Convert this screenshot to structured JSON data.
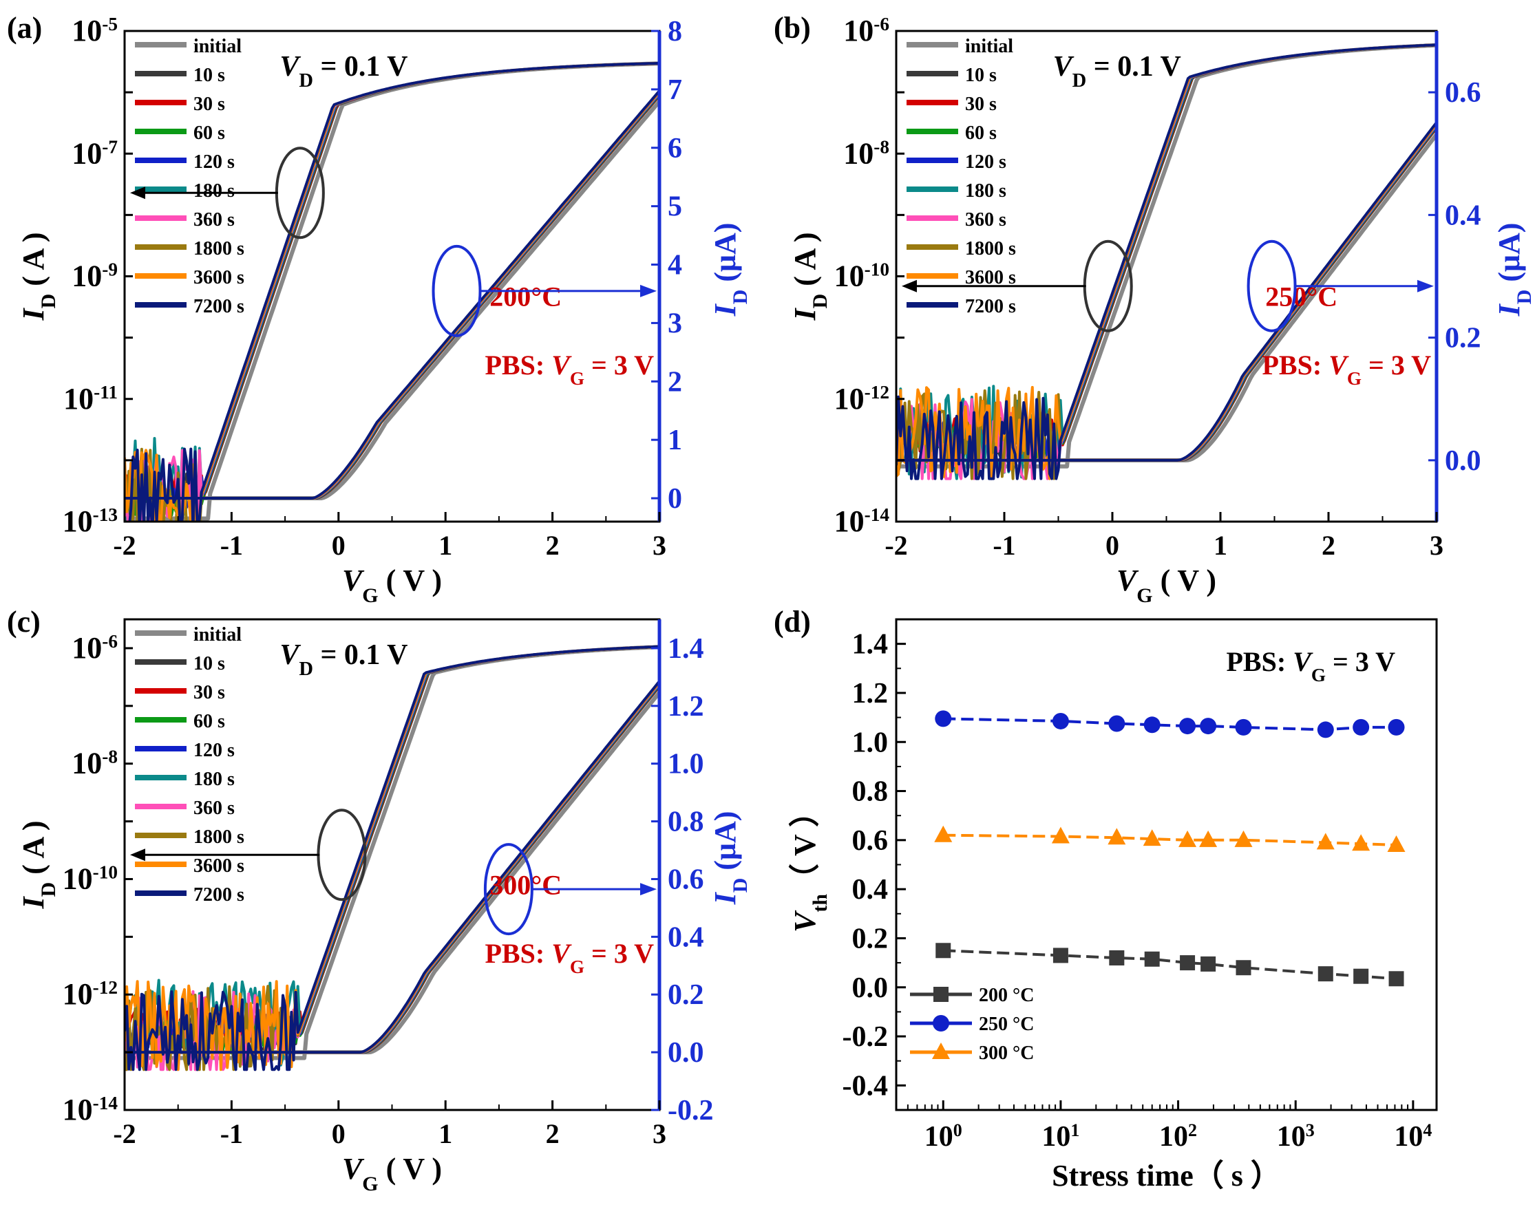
{
  "figure": {
    "colors": {
      "axis": "#000000",
      "right_axis": "#1a2fd4",
      "red_text": "#cc0000",
      "circle_left": "#333333",
      "circle_right": "#1a2fd4"
    }
  },
  "series_styles": [
    {
      "name": "initial",
      "color": "#888888"
    },
    {
      "name": "10 s",
      "color": "#3a3a3a"
    },
    {
      "name": "30 s",
      "color": "#d40000"
    },
    {
      "name": "60 s",
      "color": "#0b9a16"
    },
    {
      "name": "120 s",
      "color": "#1020c8"
    },
    {
      "name": "180 s",
      "color": "#0b8a8a"
    },
    {
      "name": "360 s",
      "color": "#ff4fb8"
    },
    {
      "name": "1800 s",
      "color": "#9a7a10"
    },
    {
      "name": "3600 s",
      "color": "#ff8a00"
    },
    {
      "name": "7200 s",
      "color": "#0a1a7a"
    }
  ],
  "chart_data": [
    {
      "id": "a",
      "label": "(a)",
      "type": "line",
      "title": "",
      "xlabel": "V",
      "xlabel_sub": "G",
      "xlabel_unit": " ( V )",
      "ylabel": "I",
      "ylabel_sub": "D",
      "ylabel_unit": " ( A )",
      "y2label": "I",
      "y2label_sub": "D",
      "y2label_unit": " (μA)",
      "xlim": [
        -2,
        3
      ],
      "xticks": [
        "-2",
        "-1",
        "0",
        "1",
        "2",
        "3"
      ],
      "ylim_log": [
        -13,
        -5
      ],
      "yticks": [
        {
          "base": "10",
          "exp": "-5"
        },
        {
          "base": "10",
          "exp": "-7"
        },
        {
          "base": "10",
          "exp": "-9"
        },
        {
          "base": "10",
          "exp": "-11"
        },
        {
          "base": "10",
          "exp": "-13"
        }
      ],
      "y2lim": [
        -0.4,
        8
      ],
      "y2ticks": [
        "0",
        "1",
        "2",
        "3",
        "4",
        "5",
        "6",
        "7",
        "8"
      ],
      "annotation_vd": {
        "pre": "V",
        "sub": "D",
        "post": " = 0.1 V"
      },
      "annotation_temp": "200°C",
      "annotation_pbs": {
        "pre": "PBS: ",
        "v": "V",
        "sub": "G",
        "post": " = 3 V"
      },
      "transfer_model": {
        "vth": -0.65,
        "ss": 0.195,
        "ioff_exp": -12.85,
        "ion_exp": -5.48,
        "floor_noise_until": -1.3
      },
      "linear_model": {
        "von": -0.2,
        "slope": 2.15,
        "exp": 1.45,
        "max": 7.0
      },
      "legend": [
        "initial",
        "10 s",
        "30 s",
        "60 s",
        "120 s",
        "180 s",
        "360 s",
        "1800 s",
        "3600 s",
        "7200 s"
      ]
    },
    {
      "id": "b",
      "label": "(b)",
      "type": "line",
      "xlabel": "V",
      "xlabel_sub": "G",
      "xlabel_unit": " ( V )",
      "ylabel": "I",
      "ylabel_sub": "D",
      "ylabel_unit": " ( A )",
      "y2label": "I",
      "y2label_sub": "D",
      "y2label_unit": " (μA)",
      "xlim": [
        -2,
        3
      ],
      "xticks": [
        "-2",
        "-1",
        "0",
        "1",
        "2",
        "3"
      ],
      "ylim_log": [
        -14,
        -6
      ],
      "yticks": [
        {
          "base": "10",
          "exp": "-6"
        },
        {
          "base": "10",
          "exp": "-8"
        },
        {
          "base": "10",
          "exp": "-10"
        },
        {
          "base": "10",
          "exp": "-12"
        },
        {
          "base": "10",
          "exp": "-14"
        }
      ],
      "y2lim": [
        -0.1,
        0.7
      ],
      "y2ticks": [
        "0.0",
        "0.2",
        "0.4",
        "0.6"
      ],
      "annotation_vd": {
        "pre": "V",
        "sub": "D",
        "post": " = 0.1 V"
      },
      "annotation_temp": "250°C",
      "annotation_pbs": {
        "pre": "PBS: ",
        "v": "V",
        "sub": "G",
        "post": " = 3 V"
      },
      "transfer_model": {
        "vth": -0.1,
        "ss": 0.2,
        "ioff_exp": -13.0,
        "ion_exp": -6.15,
        "floor_noise_until": -0.5
      },
      "linear_model": {
        "von": 0.65,
        "slope": 0.23,
        "exp": 1.6,
        "max": 0.62
      },
      "legend": [
        "initial",
        "10 s",
        "30 s",
        "60 s",
        "120 s",
        "180 s",
        "360 s",
        "1800 s",
        "3600 s",
        "7200 s"
      ]
    },
    {
      "id": "c",
      "label": "(c)",
      "type": "line",
      "xlabel": "V",
      "xlabel_sub": "G",
      "xlabel_unit": " ( V )",
      "ylabel": "I",
      "ylabel_sub": "D",
      "ylabel_unit": " ( A )",
      "y2label": "I",
      "y2label_sub": "D",
      "y2label_unit": " (μA)",
      "xlim": [
        -2,
        3
      ],
      "xticks": [
        "-2",
        "-1",
        "0",
        "1",
        "2",
        "3"
      ],
      "ylim_log": [
        -14,
        -5.5
      ],
      "yticks": [
        {
          "base": "10",
          "exp": "-6"
        },
        {
          "base": "10",
          "exp": "-8"
        },
        {
          "base": "10",
          "exp": "-10"
        },
        {
          "base": "10",
          "exp": "-12"
        },
        {
          "base": "10",
          "exp": "-14"
        }
      ],
      "y2lim": [
        -0.2,
        1.5
      ],
      "y2ticks": [
        "-0.2",
        "0.0",
        "0.2",
        "0.4",
        "0.6",
        "0.8",
        "1.0",
        "1.2",
        "1.4"
      ],
      "annotation_vd": {
        "pre": "V",
        "sub": "D",
        "post": " = 0.1 V"
      },
      "annotation_temp": "300°C",
      "annotation_pbs": {
        "pre": "PBS: ",
        "v": "V",
        "sub": "G",
        "post": " = 3 V"
      },
      "transfer_model": {
        "vth": -0.15,
        "ss": 0.19,
        "ioff_exp": -13.0,
        "ion_exp": -5.9,
        "floor_noise_until": -0.4
      },
      "linear_model": {
        "von": 0.25,
        "slope": 0.46,
        "exp": 1.5,
        "max": 1.3
      },
      "legend": [
        "initial",
        "10 s",
        "30 s",
        "60 s",
        "120 s",
        "180 s",
        "360 s",
        "1800 s",
        "3600 s",
        "7200 s"
      ]
    },
    {
      "id": "d",
      "label": "(d)",
      "type": "scatter",
      "xlabel": "Stress time（ s ）",
      "ylabel": "V",
      "ylabel_sub": "th",
      "ylabel_unit": "（ V ）",
      "xlim_log": [
        -0.4,
        4.2
      ],
      "xticks": [
        {
          "base": "10",
          "exp": "0"
        },
        {
          "base": "10",
          "exp": "1"
        },
        {
          "base": "10",
          "exp": "2"
        },
        {
          "base": "10",
          "exp": "3"
        },
        {
          "base": "10",
          "exp": "4"
        }
      ],
      "ylim": [
        -0.5,
        1.5
      ],
      "yticks": [
        "1.4",
        "1.2",
        "1.0",
        "0.8",
        "0.6",
        "0.4",
        "0.2",
        "0.0",
        "-0.2",
        "-0.4"
      ],
      "annotation_pbs": {
        "pre": "PBS: ",
        "v": "V",
        "sub": "G",
        "post": " = 3 V"
      },
      "x": [
        1,
        10,
        30,
        60,
        120,
        180,
        360,
        1800,
        3600,
        7200
      ],
      "series": [
        {
          "name": "200 °C",
          "marker": "square",
          "color": "#3a3a3a",
          "values": [
            0.15,
            0.13,
            0.12,
            0.115,
            0.1,
            0.095,
            0.08,
            0.055,
            0.045,
            0.035
          ]
        },
        {
          "name": "250 °C",
          "marker": "circle",
          "color": "#1020c8",
          "values": [
            1.095,
            1.085,
            1.075,
            1.07,
            1.065,
            1.065,
            1.06,
            1.05,
            1.06,
            1.06
          ]
        },
        {
          "name": "300 °C",
          "marker": "triangle",
          "color": "#ff8a00",
          "values": [
            0.62,
            0.615,
            0.61,
            0.605,
            0.6,
            0.6,
            0.6,
            0.59,
            0.585,
            0.58
          ]
        }
      ]
    }
  ]
}
